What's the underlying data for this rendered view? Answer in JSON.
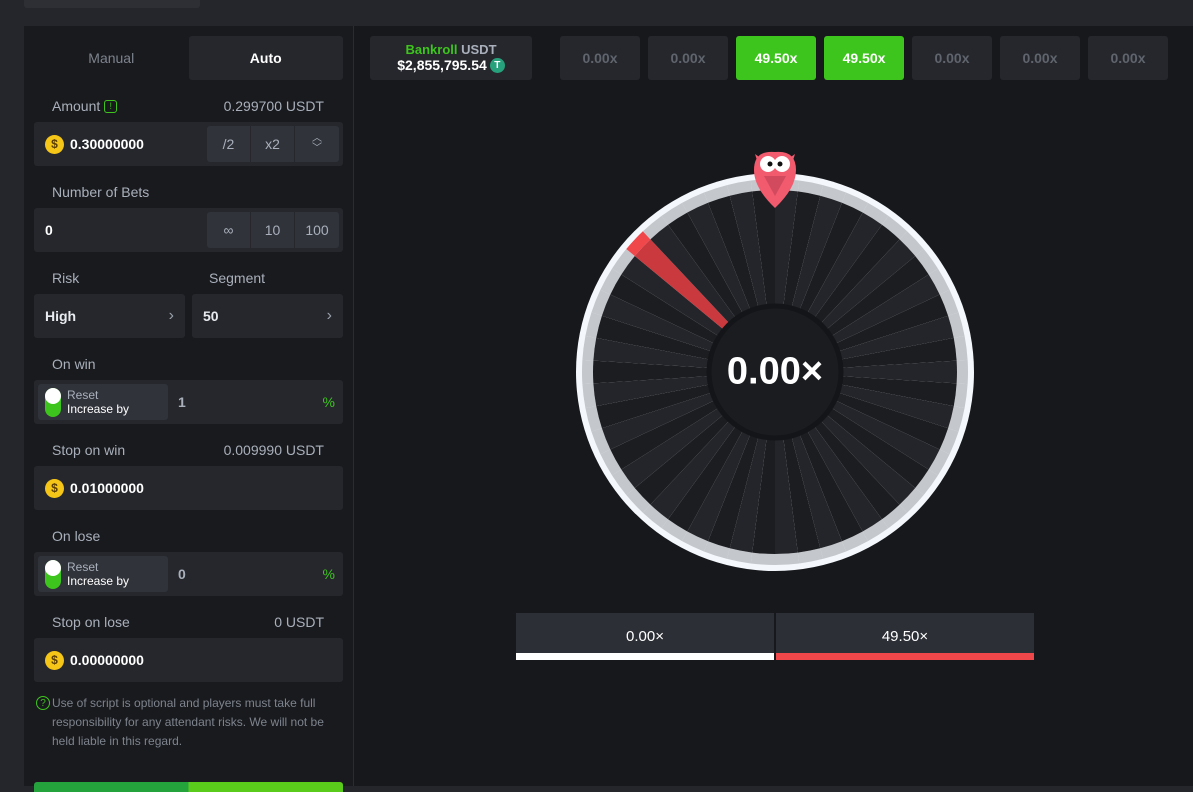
{
  "tabs": [
    {
      "label": "Manual",
      "active": false
    },
    {
      "label": "Auto",
      "active": true
    }
  ],
  "amount": {
    "label": "Amount",
    "converted": "0.299700 USDT",
    "value": "0.30000000",
    "half": "/2",
    "double": "x2"
  },
  "bets": {
    "label": "Number of Bets",
    "value": "0",
    "options": [
      "∞",
      "10",
      "100"
    ]
  },
  "risk": {
    "label": "Risk",
    "value": "High"
  },
  "segment": {
    "label": "Segment",
    "value": "50"
  },
  "on_win": {
    "label": "On win",
    "reset": "Reset",
    "increase": "Increase by",
    "value": "1",
    "unit": "%"
  },
  "stop_win": {
    "label": "Stop on win",
    "converted": "0.009990 USDT",
    "value": "0.01000000"
  },
  "on_lose": {
    "label": "On lose",
    "reset": "Reset",
    "increase": "Increase by",
    "value": "0",
    "unit": "%"
  },
  "stop_lose": {
    "label": "Stop on lose",
    "converted": "0 USDT",
    "value": "0.00000000"
  },
  "note": "Use of script is optional and players must take full responsibility for any attendant risks. We will not be held liable in this regard.",
  "bankroll": {
    "label": "Bankroll",
    "currency": "USDT",
    "amount": "$2,855,795.54"
  },
  "history": [
    {
      "v": "0.00x",
      "win": false
    },
    {
      "v": "0.00x",
      "win": false
    },
    {
      "v": "49.50x",
      "win": true
    },
    {
      "v": "49.50x",
      "win": true
    },
    {
      "v": "0.00x",
      "win": false
    },
    {
      "v": "0.00x",
      "win": false
    },
    {
      "v": "0.00x",
      "win": false
    }
  ],
  "wheel": {
    "result": "0.00×",
    "segments": 50,
    "win_segments": 1
  },
  "legend": [
    {
      "label": "0.00×",
      "color": "#ffffff"
    },
    {
      "label": "49.50×",
      "color": "#f0474b"
    }
  ],
  "colors": {
    "accent": "#3ec51d",
    "win_segment": "#f0474b",
    "pointer": "#f25a6e"
  }
}
